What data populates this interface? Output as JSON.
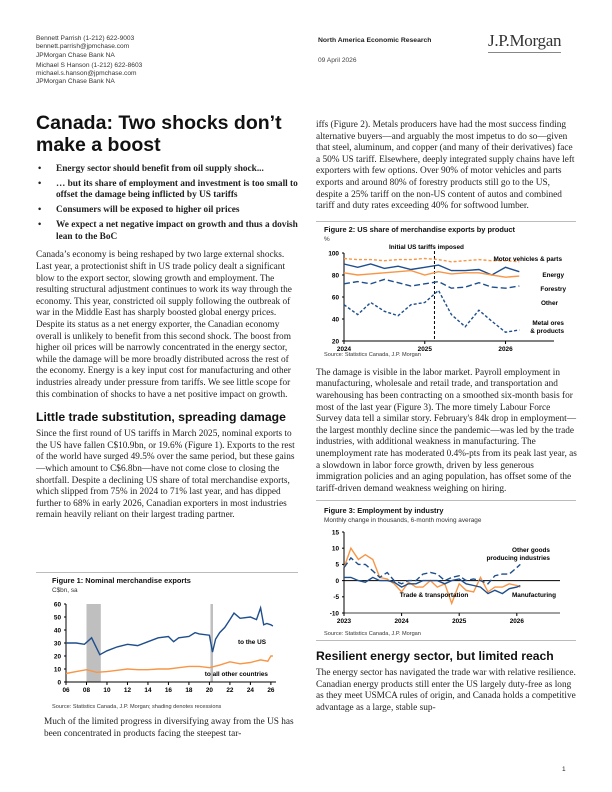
{
  "authors": [
    {
      "name_phone": "Bennett Parrish  (1-212) 622-9003",
      "email": "bennett.parrish@jpmchase.com",
      "entity": "JPMorgan Chase Bank NA"
    },
    {
      "name_phone": "Michael S Hanson  (1-212) 622-8603",
      "email": "michael.s.hanson@jpmchase.com",
      "entity": "JPMorgan Chase Bank NA"
    }
  ],
  "header": {
    "series": "North America Economic Research",
    "date": "09 April 2026",
    "logo": "J.P.Morgan"
  },
  "title": "Canada: Two shocks don’t make a boost",
  "bullets": [
    "Energy sector should benefit from oil supply shock...",
    "… but its share of employment and investment is too small to offset the damage being inflicted by US tariffs",
    "Consumers will be exposed to higher oil prices",
    "We expect a net negative impact on growth and thus a dovish lean to the BoC"
  ],
  "intro": "Canada’s economy is being reshaped by two large external shocks. Last year, a protectionist shift in US trade policy dealt a significant blow to the export sector, slowing growth and employment. The resulting structural adjustment continues to work its way through the economy. This year, constricted oil supply following the outbreak of war in the Middle East has sharply boosted global energy prices. Despite its status as a net energy exporter, the Canadian economy overall is unlikely to benefit from this second shock. The boost from higher oil prices will be narrowly concentrated in the energy sector, while the damage will be more broadly distributed across the rest of the economy. Energy is a key input cost for manufacturing and other industries already under pressure from tariffs. We see little scope for this combination of shocks to have a net positive impact on growth.",
  "section1": {
    "heading": "Little trade substitution, spreading damage",
    "para1": "Since the first round of US tariffs in March 2025, nominal exports to the US have fallen C$10.9bn, or 19.6% (Figure 1). Exports to the rest of the world have surged 49.5% over the same period, but these gains—which amount to C$6.8bn—have not come close to closing the shortfall. Despite a declining US share of total merchandise exports, which slipped from 75% in 2024 to 71% last year, and has dipped further to 68% in early 2026, Canadian exporters in most industries remain heavily reliant on their largest trading partner.",
    "para2a": "Much of the limited progress in diversifying away from the US has been concentrated in products facing the steepest tar-",
    "para2b": "iffs (Figure 2). Metals producers have had the most success finding alternative buyers—and arguably the most impetus to do so—given that steel, aluminum, and copper (and many of their derivatives) face a 50% US tariff. Elsewhere, deeply integrated supply chains have left exporters with few options. Over 90% of motor vehicles and parts exports and around 80% of forestry products still go to the US, despite a 25% tariff on the non-US content of autos and combined tariff and duty rates exceeding 40% for softwood lumber.",
    "para3": "The damage is visible in the labor market. Payroll employment in manufacturing, wholesale and retail trade, and transportation and warehousing has been contracting on a smoothed six-month basis for most of the last year (Figure 3). The more timely Labour Force Survey data tell a similar story. February's 84k drop in employment—the largest monthly decline since the pandemic—was led by the trade industries, with additional weakness in manufacturing. The unemployment rate has moderated 0.4%-pts from its peak last year, as a slowdown in labor force growth, driven by less generous immigration policies and an aging population, has offset some of the tariff-driven demand weakness weighing on hiring."
  },
  "section2": {
    "heading": "Resilient energy sector, but limited reach",
    "para1": "The energy sector has navigated the trade war with relative resilience. Canadian energy products still enter the US largely duty-free as long as they meet USMCA rules of origin, and Canada holds a competitive advantage as a large, stable sup-"
  },
  "page_number": "1",
  "colors": {
    "navy": "#1f4e8c",
    "orange": "#f79646",
    "recession": "#bfbfbf"
  },
  "chart_data": [
    {
      "type": "line",
      "title": "Figure 1: Nominal merchandise exports",
      "ylabel": "C$bn, sa",
      "source": "Source: Statistics Canada, J.P. Morgan; shading denotes recessions",
      "xlim": [
        2006,
        2026.5
      ],
      "ylim": [
        0,
        60
      ],
      "xticks": [
        2006,
        2008,
        2010,
        2012,
        2014,
        2016,
        2018,
        2020,
        2022,
        2024,
        2026
      ],
      "xtick_labels": [
        "06",
        "08",
        "10",
        "12",
        "14",
        "16",
        "18",
        "20",
        "22",
        "24",
        "26"
      ],
      "yticks": [
        0,
        10,
        20,
        30,
        40,
        50,
        60
      ],
      "recessions": [
        [
          2008,
          2009.4
        ],
        [
          2020.1,
          2020.35
        ]
      ],
      "series": [
        {
          "name": "to the US",
          "style": "solid",
          "color": "#1f4e8c",
          "x": [
            2006,
            2007,
            2007.8,
            2008.5,
            2009.3,
            2010,
            2011,
            2012,
            2013,
            2014,
            2015,
            2016,
            2016.5,
            2017,
            2018,
            2018.6,
            2019,
            2020,
            2020.3,
            2020.6,
            2021,
            2021.5,
            2022,
            2022.4,
            2023,
            2024,
            2024.6,
            2025,
            2025.3,
            2025.6,
            2026,
            2026.2
          ],
          "values": [
            30,
            30,
            29,
            34,
            21,
            24,
            27,
            29,
            28,
            31,
            34,
            35,
            31,
            34,
            35,
            38,
            37,
            36,
            23,
            33,
            38,
            42,
            48,
            53,
            49,
            50,
            48,
            57,
            44,
            45,
            44,
            43
          ]
        },
        {
          "name": "to all other countries",
          "style": "solid",
          "color": "#f79646",
          "x": [
            2006,
            2007,
            2008,
            2009,
            2010,
            2011,
            2012,
            2013,
            2014,
            2015,
            2016,
            2017,
            2018,
            2019,
            2020,
            2021,
            2022,
            2023,
            2024,
            2025,
            2025.7,
            2026,
            2026.2
          ],
          "values": [
            6.5,
            8,
            9.5,
            7.5,
            8,
            9,
            10,
            9.5,
            9.5,
            10,
            10,
            11,
            12,
            12,
            11,
            13,
            15.5,
            14,
            15,
            17,
            16,
            20,
            20
          ]
        }
      ]
    },
    {
      "type": "line",
      "title": "Figure 2: US share of merchandise exports by product",
      "ylabel": "%",
      "source": "Source: Statistics Canada, J.P. Morgan",
      "annotation": "Initial US tariffs imposed",
      "annotation_x": 2025.12,
      "xlim": [
        2024,
        2026.6
      ],
      "ylim": [
        20,
        100
      ],
      "xticks": [
        2024,
        2025,
        2026
      ],
      "xtick_labels": [
        "2024",
        "2025",
        "2026"
      ],
      "yticks": [
        20,
        40,
        60,
        80,
        100
      ],
      "x": [
        2024,
        2024.17,
        2024.33,
        2024.5,
        2024.67,
        2024.83,
        2025,
        2025.17,
        2025.33,
        2025.5,
        2025.67,
        2025.83,
        2026,
        2026.17
      ],
      "series": [
        {
          "name": "Motor vehicles & parts",
          "style": "dotted",
          "color": "#f79646",
          "values": [
            95,
            94,
            94,
            93,
            94,
            94,
            95,
            94,
            92,
            93,
            94,
            93,
            93,
            92
          ]
        },
        {
          "name": "Energy",
          "style": "solid",
          "color": "#1f4e8c",
          "values": [
            90,
            87,
            90,
            86,
            88,
            85,
            87,
            89,
            84,
            84,
            85,
            80,
            87,
            83
          ]
        },
        {
          "name": "Forestry",
          "style": "solid",
          "color": "#f79646",
          "values": [
            82,
            80,
            81,
            82,
            83,
            84,
            80,
            83,
            81,
            82,
            82,
            80,
            78,
            79
          ]
        },
        {
          "name": "Other",
          "style": "dashed",
          "color": "#1f4e8c",
          "values": [
            72,
            74,
            72,
            76,
            73,
            70,
            72,
            74,
            68,
            69,
            73,
            69,
            68,
            70
          ]
        },
        {
          "name": "Metal ores & products",
          "style": "dotted",
          "color": "#1f4e8c",
          "values": [
            53,
            44,
            55,
            47,
            43,
            53,
            55,
            66,
            44,
            33,
            48,
            38,
            28,
            30
          ]
        }
      ]
    },
    {
      "type": "line",
      "title": "Figure 3: Employment by industry",
      "subtitle": "Monthly change in thousands, 6-month moving average",
      "source": "Source: Statistics Canada, J.P. Morgan",
      "xlim": [
        2023,
        2026.75
      ],
      "ylim": [
        -10,
        15
      ],
      "xticks": [
        2023,
        2024,
        2025,
        2026
      ],
      "xtick_labels": [
        "2023",
        "2024",
        "2025",
        "2026"
      ],
      "yticks": [
        -10,
        -5,
        0,
        5,
        10,
        15
      ],
      "x": [
        2023,
        2023.12,
        2023.25,
        2023.37,
        2023.5,
        2023.62,
        2023.75,
        2023.87,
        2024,
        2024.12,
        2024.25,
        2024.37,
        2024.5,
        2024.62,
        2024.75,
        2024.87,
        2025,
        2025.12,
        2025.25,
        2025.37,
        2025.5,
        2025.62,
        2025.75,
        2025.87,
        2026,
        2026.06
      ],
      "series": [
        {
          "name": "Trade & transportation",
          "style": "solid",
          "color": "#f79646",
          "values": [
            4,
            10,
            6.5,
            8,
            6.5,
            1,
            0.5,
            -1,
            -3.5,
            -0.5,
            -2,
            -2,
            0,
            -2,
            -1,
            -7,
            -1,
            -3,
            -3.5,
            1,
            -3.5,
            -2,
            -2,
            -1,
            -1.5,
            -2
          ]
        },
        {
          "name": "Manufacturing",
          "style": "solid",
          "color": "#1f4e8c",
          "values": [
            1,
            1,
            0,
            -0.5,
            1,
            0,
            0,
            -0.5,
            -2,
            -1,
            -1,
            0,
            0,
            0,
            -1,
            0,
            0.5,
            -1,
            -1.5,
            -2,
            -4,
            -3,
            -4,
            -2.5,
            -2,
            -1.5
          ]
        },
        {
          "name": "Other goods producing industries",
          "style": "dashed",
          "color": "#1f4e8c",
          "values": [
            4,
            7,
            5,
            5,
            3,
            1,
            2.5,
            0,
            -1,
            0,
            0,
            2,
            2.5,
            2,
            0,
            1,
            1.5,
            0,
            0.5,
            0,
            -1,
            1.5,
            2,
            2,
            4,
            5
          ]
        }
      ]
    }
  ]
}
